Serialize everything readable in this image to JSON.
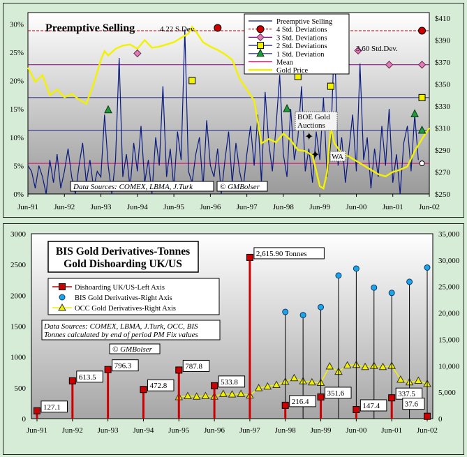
{
  "chart_data": [
    {
      "type": "line",
      "title": "Preemptive Selling",
      "x_ticks": [
        "Jun-91",
        "Jun-92",
        "Jun-93",
        "Jun-94",
        "Jun-95",
        "Jun-96",
        "Jun-97",
        "Jun-98",
        "Jun-99",
        "Jun-00",
        "Jun-01",
        "Jun-02"
      ],
      "y_left_ticks": [
        "0%",
        "5%",
        "10%",
        "15%",
        "20%",
        "25%",
        "30%"
      ],
      "y_right_ticks": [
        "$250",
        "$270",
        "$290",
        "$310",
        "$330",
        "$350",
        "$370",
        "$390",
        "$410"
      ],
      "ylim_left": [
        0,
        32
      ],
      "ylim_right": [
        250,
        415
      ],
      "reference_lines": [
        {
          "name": "4 Std. Deviations",
          "value": 28.8,
          "color": "#c00000"
        },
        {
          "name": "3 Std. Deviations",
          "value": 22.8,
          "color": "#800080"
        },
        {
          "name": "2 Std. Deviations",
          "value": 17.0,
          "color": "#1a237e"
        },
        {
          "name": "1 Std. Deviation",
          "value": 11.2,
          "color": "#1a237e"
        },
        {
          "name": "Mean",
          "value": 5.4,
          "color": "#e0006e"
        }
      ],
      "series": [
        {
          "name": "Preemptive Selling",
          "color": "#0a1a80",
          "x": [
            1991.5,
            1991.6,
            1991.7,
            1991.8,
            1991.9,
            1992.0,
            1992.1,
            1992.2,
            1992.3,
            1992.4,
            1992.5,
            1992.6,
            1992.7,
            1992.8,
            1992.9,
            1993.0,
            1993.1,
            1993.2,
            1993.3,
            1993.4,
            1993.5,
            1993.6,
            1993.7,
            1993.8,
            1993.9,
            1994.0,
            1994.1,
            1994.2,
            1994.3,
            1994.4,
            1994.5,
            1994.6,
            1994.7,
            1994.8,
            1994.9,
            1995.0,
            1995.1,
            1995.2,
            1995.3,
            1995.4,
            1995.5,
            1995.6,
            1995.7,
            1995.8,
            1995.9,
            1996.0,
            1996.1,
            1996.2,
            1996.3,
            1996.4,
            1996.5,
            1996.6,
            1996.7,
            1996.8,
            1996.9,
            1997.0,
            1997.1,
            1997.2,
            1997.3,
            1997.4,
            1997.5,
            1997.6,
            1997.7,
            1997.8,
            1997.9,
            1998.0,
            1998.1,
            1998.2,
            1998.3,
            1998.4,
            1998.5,
            1998.6,
            1998.7,
            1998.8,
            1998.9,
            1999.0,
            1999.1,
            1999.2,
            1999.3,
            1999.4,
            1999.5,
            1999.6,
            1999.7,
            1999.8,
            1999.9,
            2000.0,
            2000.1,
            2000.2,
            2000.3,
            2000.4,
            2000.5,
            2000.6,
            2000.7,
            2000.8,
            2000.9,
            2001.0,
            2001.1,
            2001.2,
            2001.3,
            2001.4,
            2001.5,
            2001.6,
            2001.7,
            2001.8,
            2001.9,
            2002.0,
            2002.1,
            2002.2
          ],
          "values": [
            5,
            4,
            1,
            5,
            3,
            0,
            6,
            2,
            7,
            1,
            4,
            8,
            3,
            0,
            5,
            9,
            2,
            6,
            1,
            4,
            3,
            14,
            5,
            0,
            6,
            24,
            3,
            7,
            1,
            9,
            4,
            12,
            2,
            6,
            0,
            10,
            5,
            19,
            3,
            8,
            1,
            11,
            6,
            29,
            4,
            2,
            7,
            10,
            1,
            13,
            5,
            3,
            8,
            0,
            6,
            11,
            2,
            9,
            4,
            1,
            7,
            12,
            5,
            14,
            2,
            18,
            9,
            4,
            12,
            21,
            7,
            3,
            15,
            6,
            10,
            19,
            4,
            8,
            2,
            11,
            6,
            17,
            3,
            9,
            28,
            5,
            10,
            2,
            8,
            14,
            4,
            23,
            6,
            10,
            1,
            8,
            3,
            12,
            5,
            15,
            2,
            7,
            0,
            9,
            12,
            4,
            14,
            6
          ]
        },
        {
          "name": "Gold Price",
          "color": "#f2f200",
          "x": [
            1991.5,
            1991.7,
            1991.9,
            1992.1,
            1992.3,
            1992.5,
            1992.7,
            1992.9,
            1993.1,
            1993.3,
            1993.5,
            1993.6,
            1993.7,
            1993.9,
            1994.1,
            1994.3,
            1994.5,
            1994.7,
            1994.9,
            1995.1,
            1995.3,
            1995.5,
            1995.7,
            1995.9,
            1996.0,
            1996.1,
            1996.3,
            1996.5,
            1996.7,
            1996.9,
            1997.1,
            1997.3,
            1997.5,
            1997.7,
            1997.9,
            1998.1,
            1998.3,
            1998.5,
            1998.7,
            1998.9,
            1999.1,
            1999.3,
            1999.5,
            1999.6,
            1999.7,
            1999.8,
            1999.9,
            2000.1,
            2000.3,
            2000.5,
            2000.7,
            2000.9,
            2001.1,
            2001.3,
            2001.5,
            2001.7,
            2001.9,
            2002.1,
            2002.3,
            2002.5
          ],
          "values": [
            365,
            352,
            358,
            340,
            345,
            338,
            341,
            336,
            332,
            350,
            372,
            380,
            376,
            382,
            385,
            386,
            382,
            390,
            383,
            384,
            386,
            388,
            392,
            396,
            402,
            398,
            388,
            384,
            381,
            377,
            372,
            355,
            345,
            335,
            296,
            300,
            297,
            305,
            299,
            290,
            289,
            285,
            257,
            255,
            270,
            310,
            296,
            287,
            284,
            280,
            276,
            272,
            268,
            266,
            270,
            272,
            275,
            289,
            300,
            310
          ]
        }
      ],
      "markers": [
        {
          "type": "4 Std. Deviations",
          "x": 1996.7,
          "value": 29.3
        },
        {
          "type": "4 Std. Deviations",
          "x": 2002.3,
          "value": 28.8
        },
        {
          "type": "3 Std. Deviations",
          "x": 1994.5,
          "value": 24.8
        },
        {
          "type": "3 Std. Deviations",
          "x": 2000.55,
          "value": 25.3
        },
        {
          "type": "3 Std. Deviations",
          "x": 2001.4,
          "value": 22.8
        },
        {
          "type": "3 Std. Deviations",
          "x": 2002.3,
          "value": 22.8
        },
        {
          "type": "2 Std. Deviations",
          "x": 1996.0,
          "value": 20.0
        },
        {
          "type": "2 Std. Deviations",
          "x": 1998.9,
          "value": 20.7
        },
        {
          "type": "2 Std. Deviations",
          "x": 1999.8,
          "value": 19.0
        },
        {
          "type": "2 Std. Deviations",
          "x": 2002.3,
          "value": 17.0
        },
        {
          "type": "1 Std. Deviation",
          "x": 1993.7,
          "value": 14.8
        },
        {
          "type": "1 Std. Deviation",
          "x": 1998.6,
          "value": 15.0
        },
        {
          "type": "1 Std. Deviation",
          "x": 2002.1,
          "value": 14.1
        },
        {
          "type": "1 Std. Deviation",
          "x": 2002.3,
          "value": 11.2
        },
        {
          "type": "Mean",
          "x": 2002.3,
          "value": 5.4
        }
      ],
      "annotations": [
        "4.22 S Dev.",
        "3.60 Std.Dev.",
        "BOE Gold Auctions",
        "WA",
        "Data Sources:  COMEX, LBMA, J.Turk",
        "© GMBolser"
      ],
      "legend_position": "top-right"
    },
    {
      "type": "bar",
      "title": "BIS Gold Derivatives-Tonnes",
      "subtitle": "Gold Dishoarding UK/US",
      "x_ticks": [
        "Jun-91",
        "Jun-92",
        "Jun-93",
        "Jun-94",
        "Jun-95",
        "Jun-96",
        "Jun-97",
        "Jun-98",
        "Jun-99",
        "Jun-00",
        "Jun-01",
        "Jun-02"
      ],
      "y_left_ticks": [
        "0",
        "500",
        "1000",
        "1500",
        "2000",
        "2500",
        "3000"
      ],
      "y_right_ticks": [
        "0",
        "5,000",
        "10,000",
        "15,000",
        "20,000",
        "25,000",
        "30,000",
        "35,000"
      ],
      "ylim_left": [
        0,
        3000
      ],
      "ylim_right": [
        0,
        35000
      ],
      "series": [
        {
          "name": "Dishoarding UK/US-Left Axis",
          "color": "#cc0000",
          "x": [
            1991.5,
            1992.5,
            1993.5,
            1994.5,
            1995.5,
            1996.5,
            1997.5,
            1998.5,
            1999.5,
            2000.5,
            2001.5,
            2002.5
          ],
          "values": [
            127.1,
            613.5,
            796.3,
            472.8,
            787.8,
            533.8,
            2615.9,
            216.4,
            351.6,
            147.4,
            337.5,
            37.6
          ],
          "labels": [
            "127.1",
            "613.5",
            "796.3",
            "472.8",
            "787.8",
            "533.8",
            "2,615.90 Tonnes",
            "216.4",
            "351.6",
            "147.4",
            "337.5",
            "37.6"
          ]
        },
        {
          "name": "BIS Gold Derivatives-Right Axis",
          "color": "#1fa3e8",
          "x": [
            1998.5,
            1999.0,
            1999.5,
            2000.0,
            2000.5,
            2001.0,
            2001.5,
            2002.0,
            2002.5
          ],
          "values": [
            20200,
            19600,
            21100,
            27100,
            28400,
            24800,
            23800,
            25900,
            28600
          ]
        },
        {
          "name": "OCC Gold Derivatives-Right Axis",
          "color": "#f2f200",
          "x": [
            1995.5,
            1995.75,
            1996.0,
            1996.25,
            1996.5,
            1996.75,
            1997.0,
            1997.25,
            1997.5,
            1997.75,
            1998.0,
            1998.25,
            1998.5,
            1998.75,
            1999.0,
            1999.25,
            1999.5,
            1999.75,
            2000.0,
            2000.25,
            2000.5,
            2000.75,
            2001.0,
            2001.25,
            2001.5,
            2001.75,
            2002.0,
            2002.25,
            2002.5
          ],
          "values": [
            4100,
            4300,
            4200,
            4300,
            4200,
            4700,
            4600,
            4700,
            4400,
            5800,
            6100,
            6400,
            7000,
            7700,
            7100,
            6900,
            6800,
            9900,
            8900,
            10100,
            10200,
            9800,
            10000,
            9800,
            10000,
            7400,
            6900,
            7200,
            6600
          ]
        }
      ],
      "annotations": [
        "Data Sources: COMEX, LBMA, J.Turk, OCC, BIS",
        "Tonnes calculated by end of period PM Fix values",
        "© GMBolser"
      ],
      "legend_position": "top-left"
    }
  ]
}
